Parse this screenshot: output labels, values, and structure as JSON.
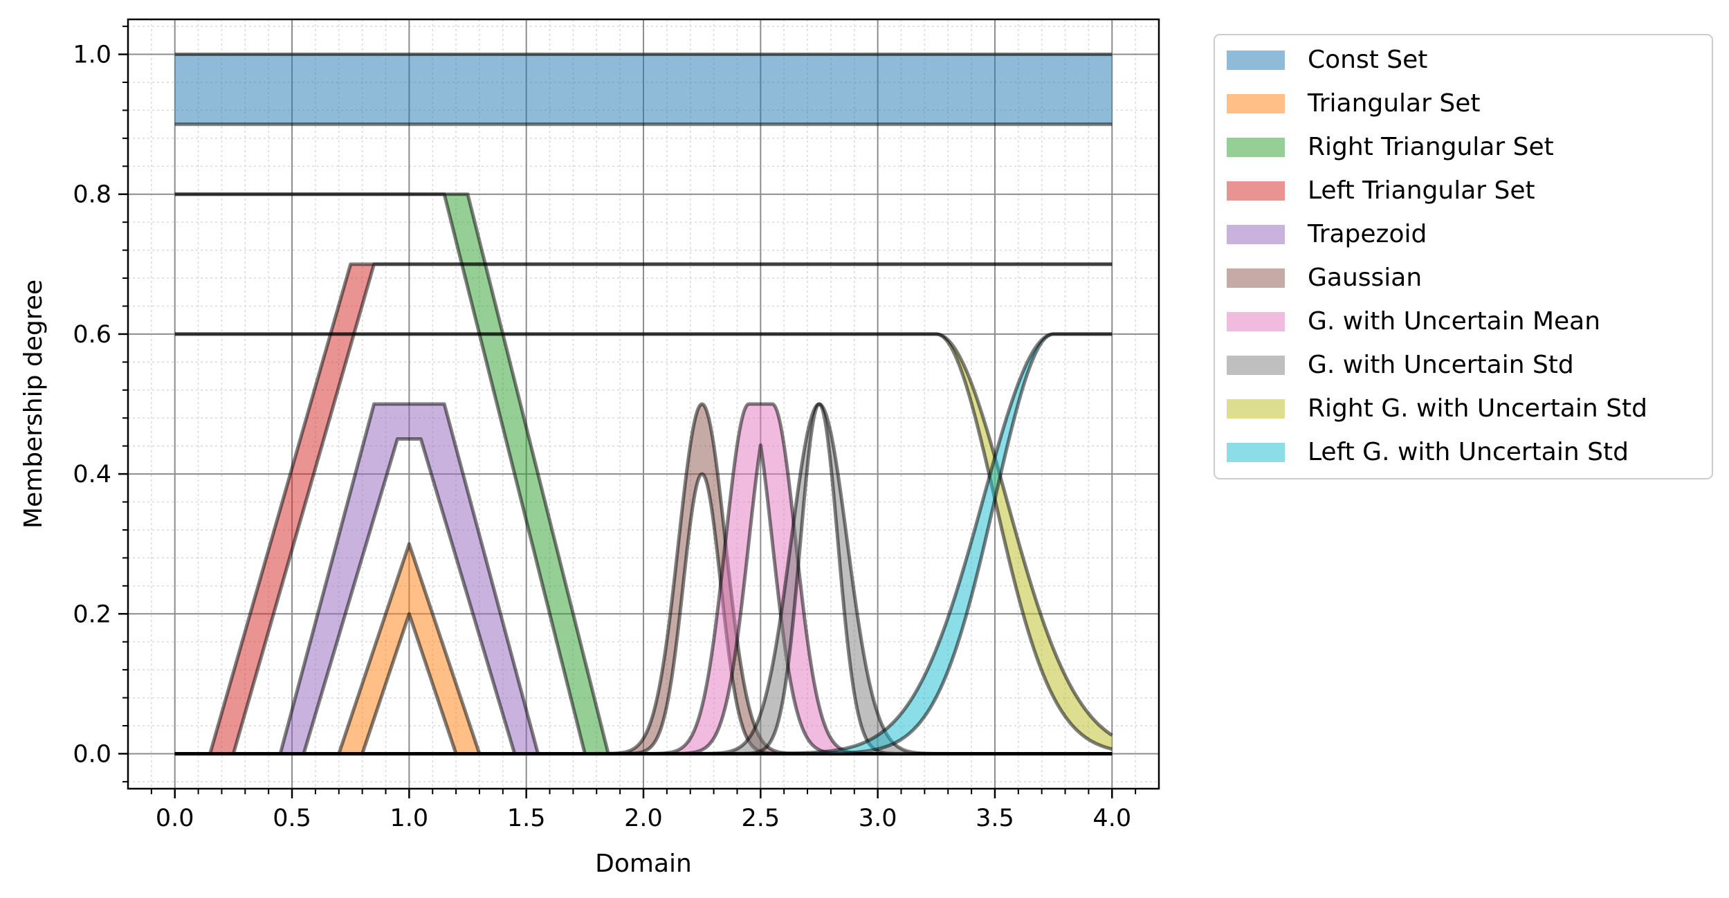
{
  "chart_data": {
    "type": "area",
    "title": "",
    "xlabel": "Domain",
    "ylabel": "Membership degree",
    "xlim": [
      -0.2,
      4.2
    ],
    "ylim": [
      -0.05,
      1.05
    ],
    "xticks": [
      "0.0",
      "0.5",
      "1.0",
      "1.5",
      "2.0",
      "2.5",
      "3.0",
      "3.5",
      "4.0"
    ],
    "xtick_values": [
      0,
      0.5,
      1,
      1.5,
      2,
      2.5,
      3,
      3.5,
      4
    ],
    "yticks": [
      "0.0",
      "0.2",
      "0.4",
      "0.6",
      "0.8",
      "1.0"
    ],
    "ytick_values": [
      0,
      0.2,
      0.4,
      0.6,
      0.8,
      1.0
    ],
    "grid": true,
    "minor_grid": true,
    "legend_position": "outside-upper-right",
    "series": [
      {
        "name": "Const Set",
        "color": "#1f77b4",
        "kind": "const",
        "upper": 1.0,
        "lower": 0.9
      },
      {
        "name": "Triangular Set",
        "color": "#ff7f0e",
        "kind": "tri",
        "upper": {
          "a": 0.7,
          "b": 1.0,
          "c": 1.3,
          "h": 0.3
        },
        "lower": {
          "a": 0.8,
          "b": 1.0,
          "c": 1.2,
          "h": 0.2
        }
      },
      {
        "name": "Right Triangular Set",
        "color": "#2ca02c",
        "kind": "rtri",
        "upper": {
          "plateau_end": 1.25,
          "zero": 1.85,
          "h": 0.8
        },
        "lower": {
          "plateau_end": 1.15,
          "zero": 1.75,
          "h": 0.8
        }
      },
      {
        "name": "Left Triangular Set",
        "color": "#d62728",
        "kind": "ltri",
        "upper": {
          "zero": 0.15,
          "peak": 0.75,
          "h": 0.7
        },
        "lower": {
          "zero": 0.25,
          "peak": 0.85,
          "h": 0.7
        }
      },
      {
        "name": "Trapezoid",
        "color": "#9467bd",
        "kind": "trap",
        "upper": {
          "a": 0.45,
          "b": 0.85,
          "c": 1.15,
          "d": 1.55,
          "h": 0.5
        },
        "lower": {
          "a": 0.55,
          "b": 0.95,
          "c": 1.05,
          "d": 1.45,
          "h": 0.45
        }
      },
      {
        "name": "Gaussian",
        "color": "#8c564b",
        "kind": "gauss",
        "upper": {
          "mean": 2.25,
          "std": 0.1,
          "h": 0.5
        },
        "lower": {
          "mean": 2.25,
          "std": 0.08,
          "h": 0.4
        }
      },
      {
        "name": "G. with Uncertain Mean",
        "color": "#e377c2",
        "kind": "gmean",
        "mean_low": 2.45,
        "mean_high": 2.55,
        "std": 0.1,
        "h": 0.5
      },
      {
        "name": "G. with Uncertain Std",
        "color": "#7f7f7f",
        "kind": "gstd",
        "mean": 2.75,
        "std_high": 0.12,
        "std_low": 0.08,
        "h": 0.5
      },
      {
        "name": "Right G. with Uncertain Std",
        "color": "#bcbd22",
        "kind": "rgstd",
        "mean": 3.25,
        "std_high": 0.3,
        "std_low": 0.25,
        "h": 0.6
      },
      {
        "name": "Left G. with Uncertain Std",
        "color": "#17becf",
        "kind": "lgstd",
        "mean": 3.75,
        "std_high": 0.3,
        "std_low": 0.25,
        "h": 0.6
      }
    ]
  }
}
